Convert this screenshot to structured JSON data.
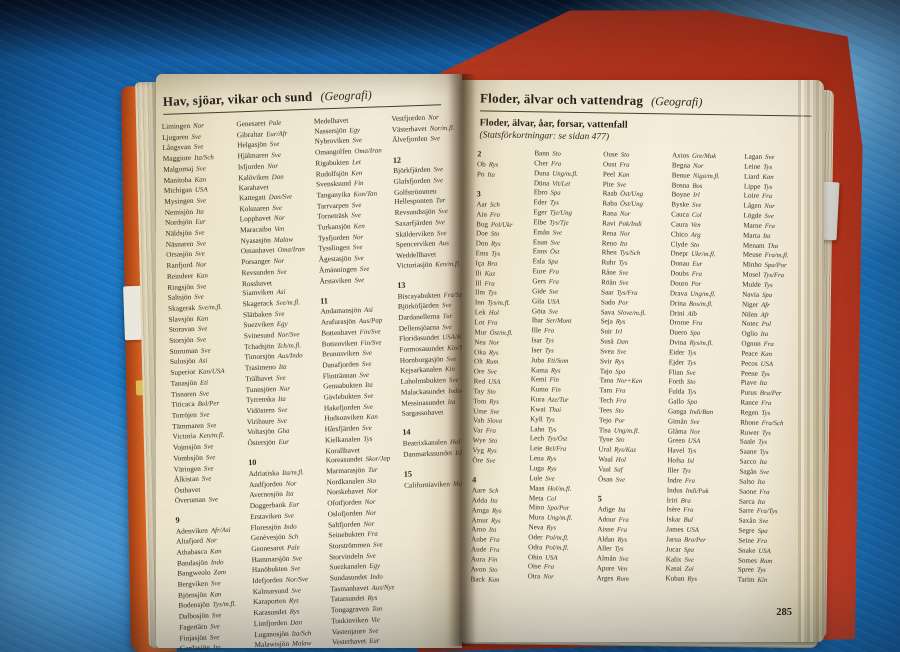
{
  "page_left": {
    "title": "Hav, sjöar, vikar och sund",
    "title_suffix": "(Geografi)",
    "columns": [
      [
        "Limingen|Nor",
        "Ljugaren|Sve",
        "Långsvan|Sve",
        "Maggiore|Ita/Sch",
        "Malgomaj|Sve",
        "Manitoba|Kan",
        "Michigan|USA",
        "Mysingen|Sve",
        "Nemisjön|Ita",
        "Nordsjön|Eur",
        "Näldsjön|Sve",
        "Näsnaren|Sve",
        "Orsasjön|Sve",
        "Ranfjord|Nor",
        "Reindeer|Kan",
        "Ringsjön|Sve",
        "Saltsjön|Sve",
        "Skagerak|Sve/m.fl.",
        "Slavsjön|Kan",
        "Storavan|Sve",
        "Storsjön|Sve",
        "Storuman|Sve",
        "Sulusjön|Asi",
        "Superior|Kan/USA",
        "Tanasjön|Eti",
        "Tisnaren|Sve",
        "Titicaca|Bol/Per",
        "Torröjen|Sve",
        "Tämmaren|Sve",
        "Victoria|Ken/m.fl.",
        "Vojmsjön|Sve",
        "Vombsjön|Sve",
        "Väringen|Sve",
        "Ålkistan|Sve",
        "Östhavet",
        "Överuman|Sve",
        "#9",
        "Adenviken|Afr/Asi",
        "Altafjord|Nor",
        "Athabasca|Kan",
        "Bandasjön|Indo",
        "Bangweolo|Zam",
        "Bergviken|Sve",
        "Björnsjön|Kan",
        "Bodensjön|Tys/m.fl.",
        "Dalbosjön|Sve",
        "Fagertärn|Sve",
        "Finjasjön|Sve",
        "Gardasjön|Ita"
      ],
      [
        "Genesaret|Pale",
        "Gibraltar|Eur/Afr",
        "Helgasjön|Sve",
        "Hjälmaren|Sve",
        "Isfjorden|Nor",
        "Kalöviken|Dan",
        "Karahavet",
        "Kattegatt|Dan/Sve",
        "Kolsnaren|Sve",
        "Lopphavet|Nor",
        "Maracaibo|Ven",
        "Nyasasjön|Malaw",
        "Omanhavet|Oma/Iran",
        "Porsanger|Nor",
        "Revsunden|Sve",
        "Rosshavet",
        "Siamviken|Asi",
        "Skagerack|Sve/m.fl.",
        "Slätbaken|Sve",
        "Suezviken|Egy",
        "Svinesund|Nor/Sve",
        "Tchadsjön|Tch/m.fl.",
        "Timorsjön|Aus/Indo",
        "Trasimeno|Ita",
        "Trälhavet|Sve",
        "Tunnsjöen|Nor",
        "Tyrrenska|Ita",
        "Vidöstern|Sve",
        "Virihaure|Sve",
        "Voltasjön|Gha",
        "Östersjön|Eur",
        "#10",
        "Adriatiska|Ita/m.fl.",
        "Andfjorden|Nor",
        "Avernosjön|Ita",
        "Doggerbank|Eur",
        "Erstaviken|Sve",
        "Floressjön|Indo",
        "Genèvesjön|Sch",
        "Gennesaret|Pale",
        "Hammarsjön|Sve",
        "Hanöbukten|Sve",
        "Idefjorden|Nor/Sve",
        "Kalmarsund|Sve",
        "Karaporten|Rys",
        "Karasundet|Rys",
        "Limfjorden|Dan",
        "Luganosjön|Ita/Sch",
        "Malawisjön|Malaw"
      ],
      [
        "Medelhavet",
        "Nassersjön|Egy",
        "Nybroviken|Sve",
        "Omangolfen|Oma/Iran",
        "Rigabukten|Let",
        "Rudolfsjön|Ken",
        "Svensksund|Fin",
        "Tanganyika|Kon/Tan",
        "Tarrvarpen|Sve",
        "Torneträsk|Sve",
        "Turkansjön|Ken",
        "Tysfjorden|Nor",
        "Tysslingen|Sve",
        "Ågestasjön|Sve",
        "Åmänningen|Sve",
        "Årstaviken|Sve",
        "#11",
        "Andamansjön|Asi",
        "Arafurasjön|Aus/Pap",
        "Bottenhavet|Fin/Sve",
        "Bottenviken|Fin/Sve",
        "Brunnsviken|Sve",
        "Danafjorden|Sve",
        "Flintrännan|Sve",
        "Genuabukten|Ita",
        "Gävlebukten|Sve",
        "Hakefjorden|Sve",
        "Hudsonviken|Kan",
        "Hårsfjärden|Sve",
        "Kielkanalen|Tys",
        "Korallhavet",
        "Koreasundet|Skor/Jap",
        "Marmarasjön|Tur",
        "Nordkanalen|Sto",
        "Norskehavet|Nor",
        "Ofotfjorden|Nor",
        "Oslofjorden|Nor",
        "Saltfjorden|Nor",
        "Seinebukten|Fra",
        "Storströmmen|Sve",
        "Storvindeln|Sve",
        "Suezkanalen|Egy",
        "Sundasundet|Indo",
        "Tasmanhavet|Aus/Nyz",
        "Tatarsundet|Rys",
        "Tongagraven|Ton",
        "Tonkinviken|Vie",
        "Vastenjaure|Sve",
        "Vesterhavet|Eur"
      ],
      [
        "Vestfjorden|Nor",
        "Västerhavet|Nor/m.fl.",
        "Älvefjorden|Sve",
        "#12",
        "Björkfjärden|Sve",
        "Glafsfjorden|Sve",
        "Golfströmmen",
        "Hellesponten|Tur",
        "Revsundssjön|Sve",
        "Saxarfjärden|Sve",
        "Skälderviken|Sve",
        "Spencerviken|Aus",
        "Weddellhavet",
        "Victoriasjön|Ken/m.fl.",
        "#13",
        "Biscayabukten|Fra/Spa",
        "Björköfjärden|Sve",
        "Dardanellerna|Tur",
        "Dellensjöarna|Sve",
        "Floridasundet|USA/Kub",
        "Formosasundet|Kin/Tai",
        "Hornborgasjön|Sve",
        "Kejsarkanalen|Kin",
        "Laholmsbukten|Sve",
        "Malackasundet|Indo/Mal",
        "Messinasundet|Ita",
        "Sargassohavet",
        "#14",
        "Beatrixkanalen|Hol",
        "Danmarkssundet|Isl",
        "#15",
        "Californiaviken|Mex"
      ]
    ]
  },
  "page_right": {
    "title": "Floder, älvar och vattendrag",
    "title_suffix": "(Geografi)",
    "intro_line1": "Floder, älvar, åar, forsar, vattenfall",
    "intro_line2": "(Statsförkortningar: se sidan 477)",
    "page_number": "285",
    "columns": [
      [
        "#2",
        "Ob|Rys",
        "Po|Ita",
        "#3",
        "Aar|Sch",
        "Ain|Fra",
        "Bug|Pol/Ukr",
        "Doe|Sto",
        "Don|Rys",
        "Ems|Tys",
        "Iça|Bra",
        "Ili|Kaz",
        "Ill|Fra",
        "Ilm|Tys",
        "Inn|Tys/m.fl.",
        "Lek|Hol",
        "Lot|Fra",
        "Mur|Öst/m.fl.",
        "Nea|Nor",
        "Oka|Rys",
        "Olt|Rum",
        "Ore|Sve",
        "Red|USA",
        "Tay|Sto",
        "Tom|Rys",
        "Ume|Sve",
        "Vah|Slova",
        "Var|Fra",
        "Wye|Sto",
        "Vyg|Rys",
        "Öre|Sve",
        "#4",
        "Aare|Sch",
        "Adda|Ita",
        "Amga|Rys",
        "Amur|Rys",
        "Arno|Ita",
        "Aube|Fra",
        "Aude|Fra",
        "Aura|Fin",
        "Avon|Sto",
        "Back|Kan"
      ],
      [
        "Bann|Sto",
        "Cher|Fra",
        "Duna|Ung/m.fl.",
        "Düna|Vit/Let",
        "Ebro|Spa",
        "Eder|Tys",
        "Eger|Tje/Ung",
        "Elbe|Tys/Tje",
        "Emån|Sve",
        "Enan|Sve",
        "Enns|Öst",
        "Esla|Spa",
        "Eure|Fra",
        "Gers|Fra",
        "Gide|Sve",
        "Gila|USA",
        "Göta|Sve",
        "Ibar|Ser/Mont",
        "Ille|Fra",
        "Isar|Tys",
        "Iser|Tys",
        "Juba|Eti/Som",
        "Kama|Rys",
        "Kemi|Fin",
        "Kumo|Fin",
        "Kura|Aze/Tur",
        "Kwai|Thai",
        "Kyll|Tys",
        "Lahn|Tys",
        "Lech|Tys/Öst",
        "Leie|Bel/Fra",
        "Lena|Rys",
        "Luga|Rys",
        "Lule|Sve",
        "Maas|Hol/m.fl.",
        "Meta|Col",
        "Mino|Spa/Por",
        "Mura|Ung/m.fl.",
        "Neva|Rys",
        "Oder|Pol/m.fl.",
        "Odra|Pol/m.fl.",
        "Ohio|USA",
        "Oise|Fra",
        "Otra|Nor"
      ],
      [
        "Ouse|Sto",
        "Oust|Fra",
        "Peel|Kan",
        "Pite|Sve",
        "Raab|Öst/Ung",
        "Raba|Öst/Ung",
        "Rana|Nor",
        "Ravi|Pak/Indi",
        "Rena|Nor",
        "Reno|Ita",
        "Rhen|Tys/Sch",
        "Ruhr|Tys",
        "Råne|Sve",
        "Röån|Sve",
        "Saar|Tys/Fra",
        "Sado|Por",
        "Sava|Slove/m.fl.",
        "Seja|Rys",
        "Suir|Irl",
        "Suså|Dan",
        "Svea|Sve",
        "Svir|Rys",
        "Tajo|Spa",
        "Tana|Nor+Ken",
        "Tarn|Fra",
        "Tech|Fra",
        "Tees|Sto",
        "Tejo|Por",
        "Tisa|Ung/m.fl.",
        "Tyne|Sto",
        "Ural|Rys/Kaz",
        "Waal|Hol",
        "Vaal|Saf",
        "Ösan|Sve",
        "#5",
        "Adige|Ita",
        "Adour|Fra",
        "Aisne|Fra",
        "Aldan|Rys",
        "Aller|Tys",
        "Almån|Sve",
        "Apure|Ven",
        "Arges|Rum"
      ],
      [
        "Axios|Gre/Mak",
        "Begna|Nor",
        "Benue|Niga/m.fl.",
        "Bosna|Bos",
        "Boyne|Irl",
        "Byske|Sve",
        "Cauca|Col",
        "Caura|Ven",
        "Chico|Arg",
        "Clyde|Sto",
        "Dnepr|Ukr/m.fl.",
        "Donau|Eur",
        "Doubs|Fra",
        "Douro|Por",
        "Drava|Ung/m.fl.",
        "Drina|Bos/m.fl.",
        "Drini|Alb",
        "Drome|Fra",
        "Duero|Spa",
        "Dvina|Rys/m.fl.",
        "Eider|Tys",
        "Ejder|Tys",
        "Flian|Sve",
        "Forth|Sto",
        "Fulda|Tys",
        "Gallo|Spa",
        "Ganga|Indi/Ban",
        "Gimån|Sve",
        "Glåma|Nor",
        "Green|USA",
        "Havel|Tys",
        "Hofsa|Isl",
        "Iller|Tys",
        "Indre|Fra",
        "Indus|Indi/Pak",
        "Iriri|Bra",
        "Isère|Fra",
        "Iskar|Bul",
        "James|USA",
        "Jarua|Bra/Per",
        "Jucar|Spa",
        "Kalix|Sve",
        "Kasai|Zai",
        "Kuban|Rys"
      ],
      [
        "Lagan|Sve",
        "Leine|Tys",
        "Liard|Kan",
        "Lippe|Tys",
        "Loire|Fra",
        "Lågen|Nor",
        "Lögde|Sve",
        "Marne|Fra",
        "Marta|Ita",
        "Menam|Tha",
        "Meuse|Fra/m.fl.",
        "Minho|Spa/Por",
        "Mosel|Tys/Fra",
        "Mulde|Tys",
        "Navia|Spa",
        "Niger|Afr",
        "Nilen|Afr",
        "Notec|Pol",
        "Oglio|Ita",
        "Ognon|Fra",
        "Peace|Kan",
        "Pecos|USA",
        "Peene|Tys",
        "Piave|Ita",
        "Purus|Bra/Per",
        "Rance|Fra",
        "Regen|Tys",
        "Rhone|Fra/Sch",
        "Ruwer|Tys",
        "Saale|Tys",
        "Saane|Tys",
        "Sacco|Ita",
        "Sagån|Sve",
        "Salso|Ita",
        "Saone|Fra",
        "Sarca|Ita",
        "Sarre|Fra/Tys",
        "Saxån|Sve",
        "Segre|Spa",
        "Seine|Fra",
        "Snake|USA",
        "Somes|Rum",
        "Spree|Tys",
        "Tarim|Kin"
      ]
    ]
  }
}
